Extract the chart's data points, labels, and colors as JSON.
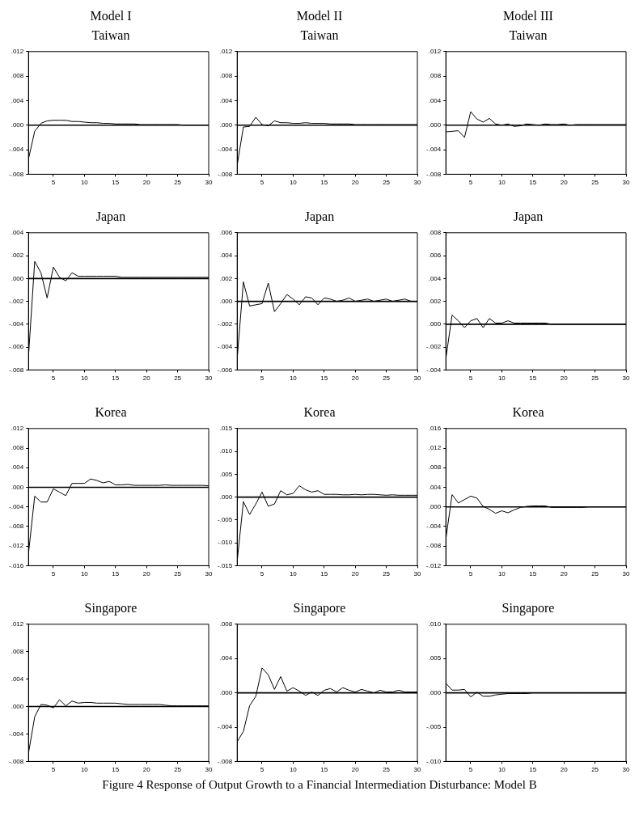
{
  "chart_data": [
    {
      "type": "line",
      "title": "Model I",
      "subtitle": "Taiwan",
      "color": "#000000",
      "x": [
        1,
        2,
        3,
        4,
        5,
        6,
        7,
        8,
        9,
        10,
        11,
        12,
        13,
        14,
        15,
        16,
        17,
        18,
        19,
        20,
        21,
        22,
        23,
        24,
        25,
        26,
        27,
        28,
        29,
        30
      ],
      "values": [
        -0.0055,
        -0.001,
        0.0003,
        0.0007,
        0.0008,
        0.0008,
        0.0008,
        0.0006,
        0.0006,
        0.0005,
        0.0004,
        0.0004,
        0.0003,
        0.0003,
        0.0002,
        0.0002,
        0.0002,
        0.0002,
        0.0001,
        0.0001,
        0.0001,
        0.0001,
        0.0001,
        0.0001,
        0.0001,
        0,
        0,
        0,
        0,
        0
      ],
      "xlim": [
        1,
        30
      ],
      "xticks": [
        5,
        10,
        15,
        20,
        25,
        30
      ],
      "ylim": [
        -0.008,
        0.012
      ],
      "yticks": [
        {
          "value": -0.008,
          "label": "-.008"
        },
        {
          "value": -0.004,
          "label": "-.004"
        },
        {
          "value": 0,
          "label": ".000"
        },
        {
          "value": 0.004,
          "label": ".004"
        },
        {
          "value": 0.008,
          "label": ".008"
        },
        {
          "value": 0.012,
          "label": ".012"
        }
      ],
      "ref_lines": [
        {
          "axis": "y",
          "value": 0
        }
      ],
      "grid": false
    },
    {
      "type": "line",
      "title": "Model II",
      "subtitle": "Taiwan",
      "color": "#000000",
      "x": [
        1,
        2,
        3,
        4,
        5,
        6,
        7,
        8,
        9,
        10,
        11,
        12,
        13,
        14,
        15,
        16,
        17,
        18,
        19,
        20,
        21,
        22,
        23,
        24,
        25,
        26,
        27,
        28,
        29,
        30
      ],
      "values": [
        -0.0065,
        -0.0003,
        -0.0002,
        0.0013,
        0.0001,
        -0.0001,
        0.0007,
        0.0004,
        0.0004,
        0.0003,
        0.0003,
        0.0004,
        0.0003,
        0.0003,
        0.0003,
        0.0002,
        0.0002,
        0.0002,
        0.0002,
        0.0001,
        0.0001,
        0.0001,
        0.0001,
        0.0001,
        0.0001,
        0.0001,
        0.0001,
        0.0001,
        0.0001,
        0.0001
      ],
      "xlim": [
        1,
        30
      ],
      "xticks": [
        5,
        10,
        15,
        20,
        25,
        30
      ],
      "ylim": [
        -0.008,
        0.012
      ],
      "yticks": [
        {
          "value": -0.008,
          "label": "-.008"
        },
        {
          "value": -0.004,
          "label": "-.004"
        },
        {
          "value": 0,
          "label": ".000"
        },
        {
          "value": 0.004,
          "label": ".004"
        },
        {
          "value": 0.008,
          "label": ".008"
        },
        {
          "value": 0.012,
          "label": ".012"
        }
      ],
      "ref_lines": [
        {
          "axis": "y",
          "value": 0
        }
      ],
      "grid": false
    },
    {
      "type": "line",
      "title": "Model III",
      "subtitle": "Taiwan",
      "color": "#000000",
      "x": [
        1,
        2,
        3,
        4,
        5,
        6,
        7,
        8,
        9,
        10,
        11,
        12,
        13,
        14,
        15,
        16,
        17,
        18,
        19,
        20,
        21,
        22,
        23,
        24,
        25,
        26,
        27,
        28,
        29,
        30
      ],
      "values": [
        -0.0011,
        -0.001,
        -0.0009,
        -0.002,
        0.0022,
        0.001,
        0.0005,
        0.0011,
        0.0002,
        0,
        0.0002,
        -0.0002,
        -0.0001,
        0.0002,
        0.0001,
        0,
        0.0002,
        0.0001,
        0.0001,
        0.0002,
        0,
        0.0001,
        0.0001,
        0.0001,
        0.0001,
        0.0001,
        0.0001,
        0.0001,
        0.0001,
        0.0001
      ],
      "xlim": [
        1,
        30
      ],
      "xticks": [
        5,
        10,
        15,
        20,
        25,
        30
      ],
      "ylim": [
        -0.008,
        0.012
      ],
      "yticks": [
        {
          "value": -0.008,
          "label": "-.008"
        },
        {
          "value": -0.004,
          "label": "-.004"
        },
        {
          "value": 0,
          "label": ".000"
        },
        {
          "value": 0.004,
          "label": ".004"
        },
        {
          "value": 0.008,
          "label": ".008"
        },
        {
          "value": 0.012,
          "label": ".012"
        }
      ],
      "ref_lines": [
        {
          "axis": "y",
          "value": 0
        }
      ],
      "grid": false
    },
    {
      "type": "line",
      "title": "Japan",
      "color": "#000000",
      "x": [
        1,
        2,
        3,
        4,
        5,
        6,
        7,
        8,
        9,
        10,
        11,
        12,
        13,
        14,
        15,
        16,
        17,
        18,
        19,
        20,
        21,
        22,
        23,
        24,
        25,
        26,
        27,
        28,
        29,
        30
      ],
      "values": [
        -0.0068,
        0.0015,
        0.0005,
        -0.0017,
        0.001,
        0.0001,
        -0.0002,
        0.0005,
        0.0002,
        0.0002,
        0.0002,
        0.0002,
        0.0002,
        0.0002,
        0.0002,
        0.0001,
        0.0001,
        0.0001,
        0.0001,
        0.0001,
        0.0001,
        0.0001,
        0.0001,
        0.0001,
        0.0001,
        0.0001,
        0.0001,
        0.0001,
        0.0001,
        0.0001
      ],
      "xlim": [
        1,
        30
      ],
      "xticks": [
        5,
        10,
        15,
        20,
        25,
        30
      ],
      "ylim": [
        -0.008,
        0.004
      ],
      "yticks": [
        {
          "value": -0.008,
          "label": "-.008"
        },
        {
          "value": -0.006,
          "label": "-.006"
        },
        {
          "value": -0.004,
          "label": "-.004"
        },
        {
          "value": -0.002,
          "label": "-.002"
        },
        {
          "value": 0,
          "label": ".000"
        },
        {
          "value": 0.002,
          "label": ".002"
        },
        {
          "value": 0.004,
          "label": ".004"
        }
      ],
      "ref_lines": [
        {
          "axis": "y",
          "value": 0
        }
      ],
      "grid": false
    },
    {
      "type": "line",
      "title": "Japan",
      "color": "#000000",
      "x": [
        1,
        2,
        3,
        4,
        5,
        6,
        7,
        8,
        9,
        10,
        11,
        12,
        13,
        14,
        15,
        16,
        17,
        18,
        19,
        20,
        21,
        22,
        23,
        24,
        25,
        26,
        27,
        28,
        29,
        30
      ],
      "values": [
        -0.005,
        0.0017,
        -0.0004,
        -0.0003,
        -0.0002,
        0.0016,
        -0.0009,
        -0.0002,
        0.0006,
        0.0002,
        -0.0003,
        0.0004,
        0.0003,
        -0.0003,
        0.0003,
        0.0002,
        0,
        0.0001,
        0.0003,
        0,
        0.0001,
        0.0002,
        0,
        0.0001,
        0.0002,
        0,
        0.0001,
        0.0002,
        0,
        0
      ],
      "xlim": [
        1,
        30
      ],
      "xticks": [
        5,
        10,
        15,
        20,
        25,
        30
      ],
      "ylim": [
        -0.006,
        0.006
      ],
      "yticks": [
        {
          "value": -0.006,
          "label": "-.006"
        },
        {
          "value": -0.004,
          "label": "-.004"
        },
        {
          "value": -0.002,
          "label": "-.002"
        },
        {
          "value": 0,
          "label": ".000"
        },
        {
          "value": 0.002,
          "label": ".002"
        },
        {
          "value": 0.004,
          "label": ".004"
        },
        {
          "value": 0.006,
          "label": ".006"
        }
      ],
      "ref_lines": [
        {
          "axis": "y",
          "value": 0
        }
      ],
      "grid": false
    },
    {
      "type": "line",
      "title": "Japan",
      "color": "#000000",
      "x": [
        1,
        2,
        3,
        4,
        5,
        6,
        7,
        8,
        9,
        10,
        11,
        12,
        13,
        14,
        15,
        16,
        17,
        18,
        19,
        20,
        21,
        22,
        23,
        24,
        25,
        26,
        27,
        28,
        29,
        30
      ],
      "values": [
        -0.003,
        0.0008,
        0.0003,
        -0.0003,
        0.0003,
        0.0005,
        -0.0003,
        0.0005,
        0.0001,
        0.0001,
        0.0003,
        0.0001,
        0.0001,
        0.0001,
        0.0001,
        0.0001,
        0.0001,
        0,
        0,
        0,
        0,
        0,
        0,
        0,
        0,
        0,
        0,
        0,
        0,
        0
      ],
      "xlim": [
        1,
        30
      ],
      "xticks": [
        5,
        10,
        15,
        20,
        25,
        30
      ],
      "ylim": [
        -0.004,
        0.008
      ],
      "yticks": [
        {
          "value": -0.004,
          "label": "-.004"
        },
        {
          "value": -0.002,
          "label": "-.002"
        },
        {
          "value": 0,
          "label": ".000"
        },
        {
          "value": 0.002,
          "label": ".002"
        },
        {
          "value": 0.004,
          "label": ".004"
        },
        {
          "value": 0.006,
          "label": ".006"
        },
        {
          "value": 0.008,
          "label": ".008"
        }
      ],
      "ref_lines": [
        {
          "axis": "y",
          "value": 0
        }
      ],
      "grid": false
    },
    {
      "type": "line",
      "title": "Korea",
      "color": "#000000",
      "x": [
        1,
        2,
        3,
        4,
        5,
        6,
        7,
        8,
        9,
        10,
        11,
        12,
        13,
        14,
        15,
        16,
        17,
        18,
        19,
        20,
        21,
        22,
        23,
        24,
        25,
        26,
        27,
        28,
        29,
        30
      ],
      "values": [
        -0.0135,
        -0.0018,
        -0.003,
        -0.003,
        -0.0003,
        -0.001,
        -0.0017,
        0.0008,
        0.0008,
        0.0008,
        0.0017,
        0.0014,
        0.0009,
        0.0012,
        0.0005,
        0.0005,
        0.0006,
        0.0004,
        0.0004,
        0.0004,
        0.0004,
        0.0004,
        0.0005,
        0.0004,
        0.0004,
        0.0004,
        0.0004,
        0.0004,
        0.0004,
        0.0003
      ],
      "xlim": [
        1,
        30
      ],
      "xticks": [
        5,
        10,
        15,
        20,
        25,
        30
      ],
      "ylim": [
        -0.016,
        0.012
      ],
      "yticks": [
        {
          "value": -0.016,
          "label": "-.016"
        },
        {
          "value": -0.012,
          "label": "-.012"
        },
        {
          "value": -0.008,
          "label": "-.008"
        },
        {
          "value": -0.004,
          "label": "-.004"
        },
        {
          "value": 0,
          "label": ".000"
        },
        {
          "value": 0.004,
          "label": ".004"
        },
        {
          "value": 0.008,
          "label": ".008"
        },
        {
          "value": 0.012,
          "label": ".012"
        }
      ],
      "ref_lines": [
        {
          "axis": "y",
          "value": 0
        }
      ],
      "grid": false
    },
    {
      "type": "line",
      "title": "Korea",
      "color": "#000000",
      "x": [
        1,
        2,
        3,
        4,
        5,
        6,
        7,
        8,
        9,
        10,
        11,
        12,
        13,
        14,
        15,
        16,
        17,
        18,
        19,
        20,
        21,
        22,
        23,
        24,
        25,
        26,
        27,
        28,
        29,
        30
      ],
      "values": [
        -0.014,
        -0.001,
        -0.0038,
        -0.0015,
        0.0011,
        -0.002,
        -0.0015,
        0.0014,
        0.0005,
        0.0008,
        0.0025,
        0.0016,
        0.0011,
        0.0014,
        0.0006,
        0.0006,
        0.0006,
        0.0005,
        0.0005,
        0.0006,
        0.0005,
        0.0006,
        0.0006,
        0.0005,
        0.0004,
        0.0005,
        0.0004,
        0.0004,
        0.0004,
        0.0004
      ],
      "xlim": [
        1,
        30
      ],
      "xticks": [
        5,
        10,
        15,
        20,
        25,
        30
      ],
      "ylim": [
        -0.015,
        0.015
      ],
      "yticks": [
        {
          "value": -0.015,
          "label": "-.015"
        },
        {
          "value": -0.01,
          "label": "-.010"
        },
        {
          "value": -0.005,
          "label": "-.005"
        },
        {
          "value": 0,
          "label": ".000"
        },
        {
          "value": 0.005,
          "label": ".005"
        },
        {
          "value": 0.01,
          "label": ".010"
        },
        {
          "value": 0.015,
          "label": ".015"
        }
      ],
      "ref_lines": [
        {
          "axis": "y",
          "value": 0
        }
      ],
      "grid": false
    },
    {
      "type": "line",
      "title": "Korea",
      "color": "#000000",
      "x": [
        1,
        2,
        3,
        4,
        5,
        6,
        7,
        8,
        9,
        10,
        11,
        12,
        13,
        14,
        15,
        16,
        17,
        18,
        19,
        20,
        21,
        22,
        23,
        24,
        25,
        26,
        27,
        28,
        29,
        30
      ],
      "values": [
        -0.0065,
        0.0025,
        0.0008,
        0.0015,
        0.0022,
        0.0018,
        0.0001,
        -0.0005,
        -0.0013,
        -0.0008,
        -0.0012,
        -0.0006,
        -0.0001,
        0.0001,
        0.0002,
        0.0002,
        0.0002,
        -0.0001,
        -0.0001,
        -0.0001,
        -0.0001,
        -0.0001,
        -0.0001,
        0,
        0,
        0,
        0,
        0,
        0,
        0
      ],
      "xlim": [
        1,
        30
      ],
      "xticks": [
        5,
        10,
        15,
        20,
        25,
        30
      ],
      "ylim": [
        -0.012,
        0.016
      ],
      "yticks": [
        {
          "value": -0.012,
          "label": "-.012"
        },
        {
          "value": -0.008,
          "label": "-.008"
        },
        {
          "value": -0.004,
          "label": "-.004"
        },
        {
          "value": 0,
          "label": ".000"
        },
        {
          "value": 0.004,
          "label": ".004"
        },
        {
          "value": 0.008,
          "label": ".008"
        },
        {
          "value": 0.012,
          "label": ".012"
        },
        {
          "value": 0.016,
          "label": ".016"
        }
      ],
      "ref_lines": [
        {
          "axis": "y",
          "value": 0
        }
      ],
      "grid": false
    },
    {
      "type": "line",
      "title": "Singapore",
      "color": "#000000",
      "x": [
        1,
        2,
        3,
        4,
        5,
        6,
        7,
        8,
        9,
        10,
        11,
        12,
        13,
        14,
        15,
        16,
        17,
        18,
        19,
        20,
        21,
        22,
        23,
        24,
        25,
        26,
        27,
        28,
        29,
        30
      ],
      "values": [
        -0.0068,
        -0.0015,
        0.0003,
        0.0002,
        -0.0002,
        0.001,
        0.0001,
        0.0008,
        0.0005,
        0.0006,
        0.0006,
        0.0005,
        0.0005,
        0.0005,
        0.0005,
        0.0004,
        0.0003,
        0.0003,
        0.0003,
        0.0003,
        0.0003,
        0.0003,
        0.0002,
        0.0001,
        0.0001,
        0.0001,
        0.0001,
        0.0001,
        0.0001,
        0.0001
      ],
      "xlim": [
        1,
        30
      ],
      "xticks": [
        5,
        10,
        15,
        20,
        25,
        30
      ],
      "ylim": [
        -0.008,
        0.012
      ],
      "yticks": [
        {
          "value": -0.008,
          "label": "-.008"
        },
        {
          "value": -0.004,
          "label": "-.004"
        },
        {
          "value": 0,
          "label": ".000"
        },
        {
          "value": 0.004,
          "label": ".004"
        },
        {
          "value": 0.008,
          "label": ".008"
        },
        {
          "value": 0.012,
          "label": ".012"
        }
      ],
      "ref_lines": [
        {
          "axis": "y",
          "value": 0
        }
      ],
      "grid": false
    },
    {
      "type": "line",
      "title": "Singapore",
      "color": "#000000",
      "x": [
        1,
        2,
        3,
        4,
        5,
        6,
        7,
        8,
        9,
        10,
        11,
        12,
        13,
        14,
        15,
        16,
        17,
        18,
        19,
        20,
        21,
        22,
        23,
        24,
        25,
        26,
        27,
        28,
        29,
        30
      ],
      "values": [
        -0.0057,
        -0.0045,
        -0.0015,
        -0.0004,
        0.0029,
        0.0021,
        0.0004,
        0.0019,
        0.0002,
        0.0006,
        0.0002,
        -0.0003,
        0.0001,
        -0.0003,
        0.0003,
        0.0005,
        0.0001,
        0.0006,
        0.0003,
        0.0001,
        0.0004,
        0.0002,
        0,
        0.0003,
        0.0001,
        0.0001,
        0.0003,
        0.0001,
        0.0001,
        0.0001
      ],
      "xlim": [
        1,
        30
      ],
      "xticks": [
        5,
        10,
        15,
        20,
        25,
        30
      ],
      "ylim": [
        -0.008,
        0.008
      ],
      "yticks": [
        {
          "value": -0.008,
          "label": "-.008"
        },
        {
          "value": -0.004,
          "label": "-.004"
        },
        {
          "value": 0,
          "label": ".000"
        },
        {
          "value": 0.004,
          "label": ".004"
        },
        {
          "value": 0.008,
          "label": ".008"
        }
      ],
      "ref_lines": [
        {
          "axis": "y",
          "value": 0
        }
      ],
      "grid": false,
      "annotations": [
        "Figure 4 Response of Output Growth to a Financial Intermediation Disturbance: Model B"
      ]
    },
    {
      "type": "line",
      "title": "Singapore",
      "color": "#000000",
      "x": [
        1,
        2,
        3,
        4,
        5,
        6,
        7,
        8,
        9,
        10,
        11,
        12,
        13,
        14,
        15,
        16,
        17,
        18,
        19,
        20,
        21,
        22,
        23,
        24,
        25,
        26,
        27,
        28,
        29,
        30
      ],
      "values": [
        0.0014,
        0.0004,
        0.0004,
        0.0005,
        -0.0006,
        0.0001,
        -0.0005,
        -0.0005,
        -0.0003,
        -0.0002,
        -0.0001,
        -0.0001,
        -0.0001,
        -0.0001,
        0,
        0,
        0,
        0,
        0,
        0,
        0,
        0,
        0,
        0,
        0,
        0,
        0,
        0,
        0,
        0
      ],
      "xlim": [
        1,
        30
      ],
      "xticks": [
        5,
        10,
        15,
        20,
        25,
        30
      ],
      "ylim": [
        -0.01,
        0.01
      ],
      "yticks": [
        {
          "value": -0.01,
          "label": "-.010"
        },
        {
          "value": -0.005,
          "label": "-.005"
        },
        {
          "value": 0,
          "label": ".000"
        },
        {
          "value": 0.005,
          "label": ".005"
        },
        {
          "value": 0.01,
          "label": ".010"
        }
      ],
      "ref_lines": [
        {
          "axis": "y",
          "value": 0
        }
      ],
      "grid": false
    }
  ]
}
